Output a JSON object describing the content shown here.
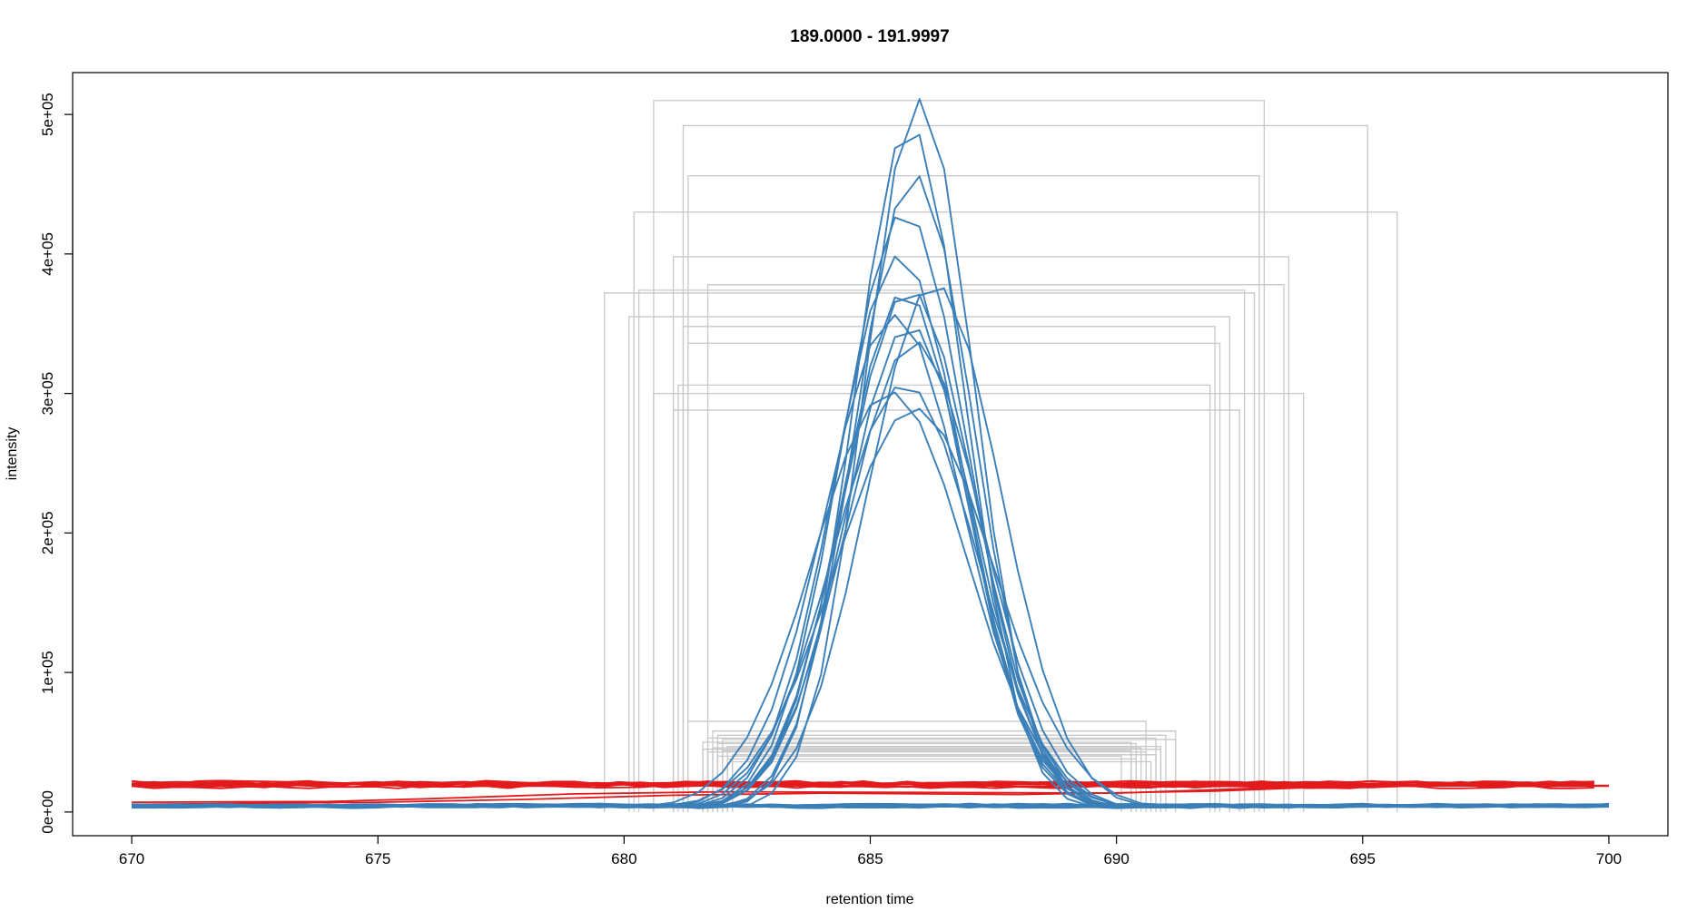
{
  "chart_data": {
    "type": "line",
    "title": "189.0000 - 191.9997",
    "xlabel": "retention time",
    "ylabel": "intensity",
    "xlim": [
      668.8,
      701.2
    ],
    "ylim": [
      -17000,
      530000
    ],
    "x_ticks": [
      670,
      675,
      680,
      685,
      690,
      695,
      700
    ],
    "x_tick_labels": [
      "670",
      "675",
      "680",
      "685",
      "690",
      "695",
      "700"
    ],
    "y_ticks": [
      0,
      100000,
      200000,
      300000,
      400000,
      500000
    ],
    "y_tick_labels": [
      "0e+00",
      "1e+05",
      "2e+05",
      "3e+05",
      "4e+05",
      "5e+05"
    ],
    "grid": false,
    "colors": {
      "peak": "#3a7fb8",
      "baseline": "#e31a1c",
      "box": "#c8c8c8",
      "axis": "#000000"
    },
    "baseline_range": [
      670,
      700
    ],
    "peaks": [
      {
        "apex": 686.0,
        "height": 510000,
        "width": 1.1,
        "box": [
          680.6,
          693.0
        ]
      },
      {
        "apex": 685.8,
        "height": 492000,
        "width": 1.12,
        "box": [
          681.2,
          695.1
        ]
      },
      {
        "apex": 685.9,
        "height": 456000,
        "width": 1.2,
        "box": [
          681.3,
          692.9
        ]
      },
      {
        "apex": 685.7,
        "height": 430000,
        "width": 1.28,
        "box": [
          680.2,
          695.7
        ]
      },
      {
        "apex": 685.6,
        "height": 398000,
        "width": 1.3,
        "box": [
          681.0,
          693.5
        ]
      },
      {
        "apex": 686.3,
        "height": 378000,
        "width": 1.35,
        "box": [
          681.7,
          693.4
        ]
      },
      {
        "apex": 685.7,
        "height": 372000,
        "width": 1.25,
        "box": [
          679.6,
          692.8
        ]
      },
      {
        "apex": 685.8,
        "height": 374000,
        "width": 1.32,
        "box": [
          680.3,
          692.6
        ]
      },
      {
        "apex": 685.5,
        "height": 355000,
        "width": 1.4,
        "box": [
          680.1,
          692.3
        ]
      },
      {
        "apex": 685.8,
        "height": 348000,
        "width": 1.3,
        "box": [
          681.2,
          692.0
        ]
      },
      {
        "apex": 685.9,
        "height": 336000,
        "width": 1.38,
        "box": [
          681.3,
          692.1
        ]
      },
      {
        "apex": 685.7,
        "height": 306000,
        "width": 1.45,
        "box": [
          681.1,
          691.9
        ]
      },
      {
        "apex": 685.4,
        "height": 300000,
        "width": 1.55,
        "box": [
          680.6,
          693.8
        ]
      },
      {
        "apex": 685.9,
        "height": 288000,
        "width": 1.6,
        "box": [
          681.0,
          692.5
        ]
      }
    ],
    "small_boxes": [
      {
        "x": [
          681.3,
          690.6
        ],
        "top": 65000
      },
      {
        "x": [
          681.8,
          691.2
        ],
        "top": 58000
      },
      {
        "x": [
          681.9,
          691.0
        ],
        "top": 55000
      },
      {
        "x": [
          681.7,
          690.8
        ],
        "top": 53000
      },
      {
        "x": [
          682.0,
          691.2
        ],
        "top": 52000
      },
      {
        "x": [
          681.6,
          690.3
        ],
        "top": 50000
      },
      {
        "x": [
          681.9,
          690.4
        ],
        "top": 49000
      },
      {
        "x": [
          682.1,
          690.9
        ],
        "top": 47000
      },
      {
        "x": [
          681.8,
          690.5
        ],
        "top": 46000
      },
      {
        "x": [
          681.6,
          690.9
        ],
        "top": 45000
      },
      {
        "x": [
          682.0,
          690.3
        ],
        "top": 44000
      },
      {
        "x": [
          681.7,
          690.6
        ],
        "top": 43000
      },
      {
        "x": [
          682.2,
          690.8
        ],
        "top": 41000
      },
      {
        "x": [
          681.9,
          690.1
        ],
        "top": 40000
      },
      {
        "x": [
          682.1,
          690.4
        ],
        "top": 38000
      },
      {
        "x": [
          682.2,
          690.7
        ],
        "top": 36000
      }
    ],
    "red_baselines": [
      18500,
      19200,
      19800,
      20300,
      20900,
      21400,
      18000,
      19600,
      20600,
      21100,
      19000,
      20000
    ],
    "red_low_lines": [
      {
        "points": [
          [
            670,
            7000
          ],
          [
            674,
            7500
          ],
          [
            676,
            9500
          ],
          [
            679,
            13000
          ],
          [
            682,
            14500
          ],
          [
            686,
            14000
          ],
          [
            690,
            13500
          ],
          [
            694,
            18500
          ],
          [
            700,
            19000
          ]
        ]
      },
      {
        "points": [
          [
            670,
            5500
          ],
          [
            675,
            7000
          ],
          [
            678,
            9000
          ],
          [
            681,
            12000
          ],
          [
            684,
            13500
          ],
          [
            688,
            12500
          ],
          [
            692,
            15000
          ],
          [
            695,
            19000
          ],
          [
            700,
            18500
          ]
        ]
      }
    ],
    "blue_baselines": [
      3500,
      3800,
      4100,
      4400,
      4700,
      5000,
      5300,
      3700,
      4300,
      4900,
      5100,
      3900,
      4600,
      5200
    ]
  }
}
